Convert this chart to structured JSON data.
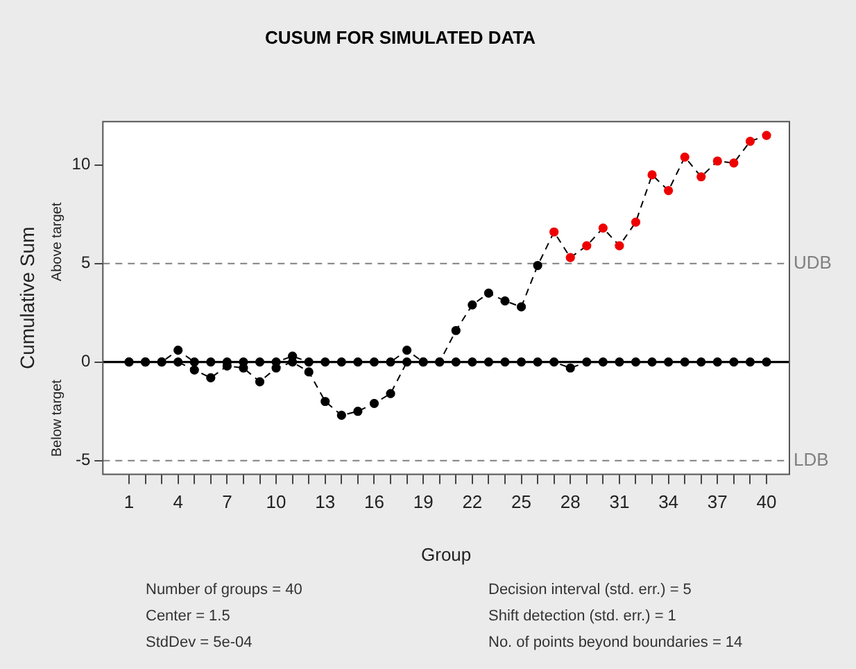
{
  "chart_data": {
    "type": "line",
    "title": "CUSUM FOR SIMULATED DATA",
    "xlabel": "Group",
    "ylabel": "Cumulative Sum",
    "annotations": [
      "Above target",
      "Below target",
      "Number of groups = 40",
      "Center = 1.5",
      "StdDev = 5e-04",
      "Decision interval (std. err.) = 5",
      "Shift detection (std. err.) = 1",
      "No. of points beyond boundaries = 14"
    ],
    "x": [
      1,
      2,
      3,
      4,
      5,
      6,
      7,
      8,
      9,
      10,
      11,
      12,
      13,
      14,
      15,
      16,
      17,
      18,
      19,
      20,
      21,
      22,
      23,
      24,
      25,
      26,
      27,
      28,
      29,
      30,
      31,
      32,
      33,
      34,
      35,
      36,
      37,
      38,
      39,
      40
    ],
    "series": [
      {
        "color": "#000000",
        "colors": [
          "#000000",
          "#000000",
          "#000000",
          "#000000",
          "#000000",
          "#000000",
          "#000000",
          "#000000",
          "#000000",
          "#000000",
          "#000000",
          "#000000",
          "#000000",
          "#000000",
          "#000000",
          "#000000",
          "#000000",
          "#000000",
          "#000000",
          "#000000",
          "#000000",
          "#000000",
          "#000000",
          "#000000",
          "#000000",
          "#000000",
          "#ee0000",
          "#ee0000",
          "#ee0000",
          "#ee0000",
          "#ee0000",
          "#ee0000",
          "#ee0000",
          "#ee0000",
          "#ee0000",
          "#ee0000",
          "#ee0000",
          "#ee0000",
          "#ee0000",
          "#ee0000"
        ],
        "values": [
          0,
          0,
          0,
          0.6,
          0,
          0,
          0,
          0,
          0,
          0,
          0.3,
          0,
          0,
          0,
          0,
          0,
          0,
          0.6,
          0,
          0,
          1.6,
          2.9,
          3.5,
          3.1,
          2.8,
          4.9,
          6.6,
          5.3,
          5.9,
          6.8,
          5.9,
          7.1,
          9.5,
          8.7,
          10.4,
          9.4,
          10.2,
          10.1,
          11.2,
          11.5
        ]
      },
      {
        "color": "#000000",
        "values": [
          0,
          0,
          0,
          0,
          -0.4,
          -0.8,
          -0.2,
          -0.3,
          -1.0,
          -0.3,
          0,
          -0.5,
          -2.0,
          -2.7,
          -2.5,
          -2.1,
          -1.6,
          0,
          0,
          0,
          0,
          0,
          0,
          0,
          0,
          0,
          0,
          -0.3,
          0,
          0,
          0,
          0,
          0,
          0,
          0,
          0,
          0,
          0,
          0,
          0
        ]
      }
    ],
    "xlim": [
      -0.6,
      41.4
    ],
    "xticks": [
      1,
      {
        "value": 2,
        "label": null
      },
      {
        "value": 3,
        "label": null
      },
      4,
      {
        "value": 5,
        "label": null
      },
      {
        "value": 6,
        "label": null
      },
      7,
      {
        "value": 8,
        "label": null
      },
      {
        "value": 9,
        "label": null
      },
      10,
      {
        "value": 11,
        "label": null
      },
      {
        "value": 12,
        "label": null
      },
      13,
      {
        "value": 14,
        "label": null
      },
      {
        "value": 15,
        "label": null
      },
      16,
      {
        "value": 17,
        "label": null
      },
      {
        "value": 18,
        "label": null
      },
      19,
      {
        "value": 20,
        "label": null
      },
      {
        "value": 21,
        "label": null
      },
      22,
      {
        "value": 23,
        "label": null
      },
      {
        "value": 24,
        "label": null
      },
      25,
      {
        "value": 26,
        "label": null
      },
      {
        "value": 27,
        "label": null
      },
      28,
      {
        "value": 29,
        "label": null
      },
      {
        "value": 30,
        "label": null
      },
      31,
      {
        "value": 32,
        "label": null
      },
      {
        "value": 33,
        "label": null
      },
      34,
      {
        "value": 35,
        "label": null
      },
      {
        "value": 36,
        "label": null
      },
      37,
      {
        "value": 38,
        "label": null
      },
      {
        "value": 39,
        "label": null
      },
      40
    ],
    "ylim": [
      -5.7,
      12.2
    ],
    "yticks": [
      -5,
      0,
      5,
      10
    ],
    "ref_lines": [
      {
        "axis": "y",
        "value": 0,
        "color": "#000000",
        "line_style": "solid"
      },
      {
        "axis": "y",
        "value": 5,
        "label": "UDB",
        "color": "#808080",
        "line_style": "dashed"
      },
      {
        "axis": "y",
        "value": -5,
        "label": "LDB",
        "color": "#808080",
        "line_style": "dashed"
      }
    ],
    "marker": "circle",
    "line_style": "dashed"
  }
}
